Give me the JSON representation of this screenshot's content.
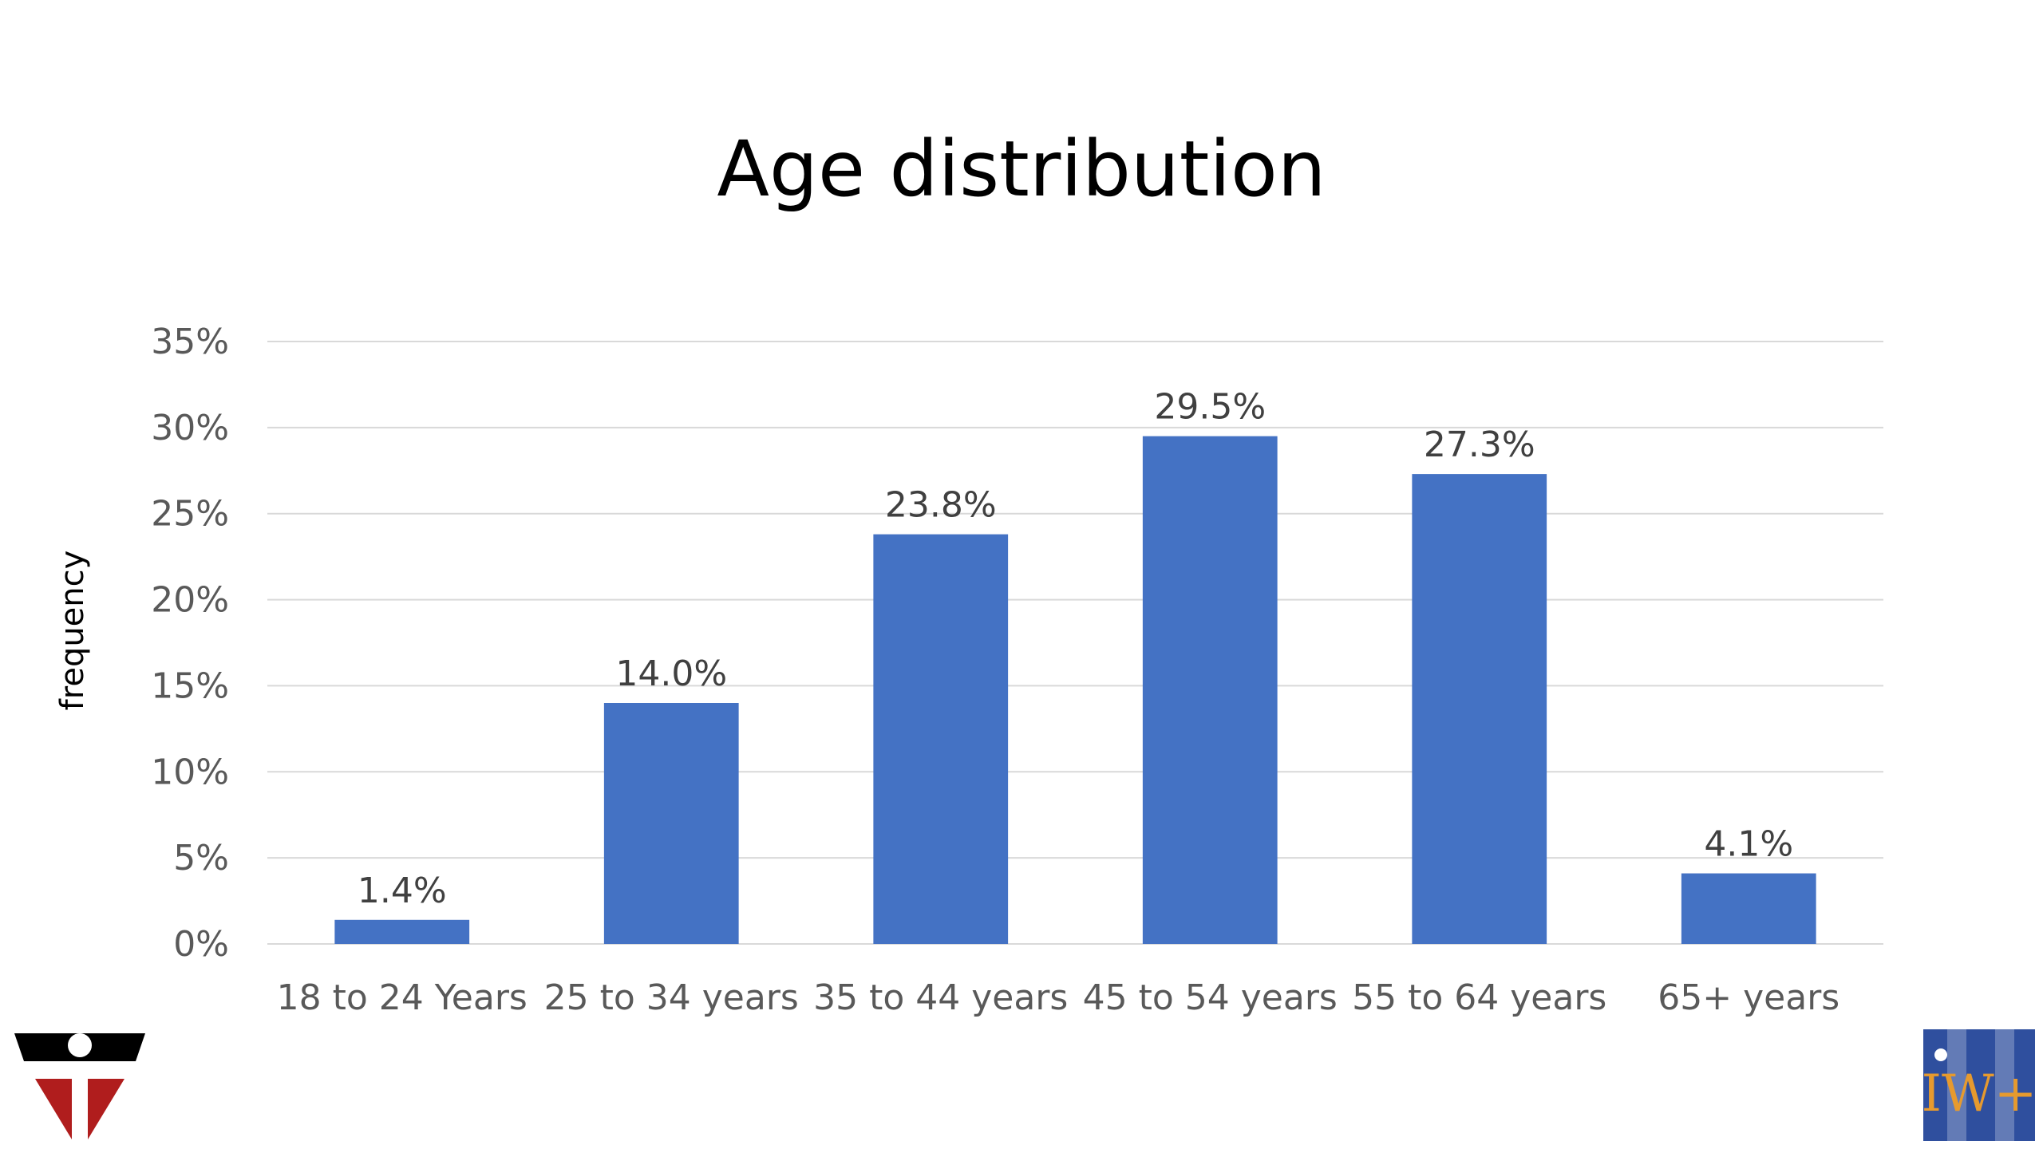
{
  "chart_data": {
    "type": "bar",
    "title": "Age distribution",
    "xlabel": "",
    "ylabel": "frequency",
    "categories": [
      "18 to 24 Years",
      "25 to 34 years",
      "35 to 44 years",
      "45 to 54 years",
      "55 to 64 years",
      "65+ years"
    ],
    "values": [
      1.4,
      14.0,
      23.8,
      29.5,
      27.3,
      4.1
    ],
    "value_labels": [
      "1.4%",
      "14.0%",
      "23.8%",
      "29.5%",
      "27.3%",
      "4.1%"
    ],
    "ylim": [
      0,
      35
    ],
    "yticks": [
      0,
      5,
      10,
      15,
      20,
      25,
      30,
      35
    ],
    "ytick_labels": [
      "0%",
      "5%",
      "10%",
      "15%",
      "20%",
      "25%",
      "30%",
      "35%"
    ],
    "grid": true,
    "bar_color": "#4472C4"
  },
  "logos": {
    "left": "shield-logo",
    "right": "iw-plus-logo",
    "right_logo_text": "IW+",
    "right_logo_bg": "#2f4f9e",
    "right_logo_accent": "#e69a2e",
    "left_logo_dark": "#000000",
    "left_logo_red": "#b01d1d"
  }
}
